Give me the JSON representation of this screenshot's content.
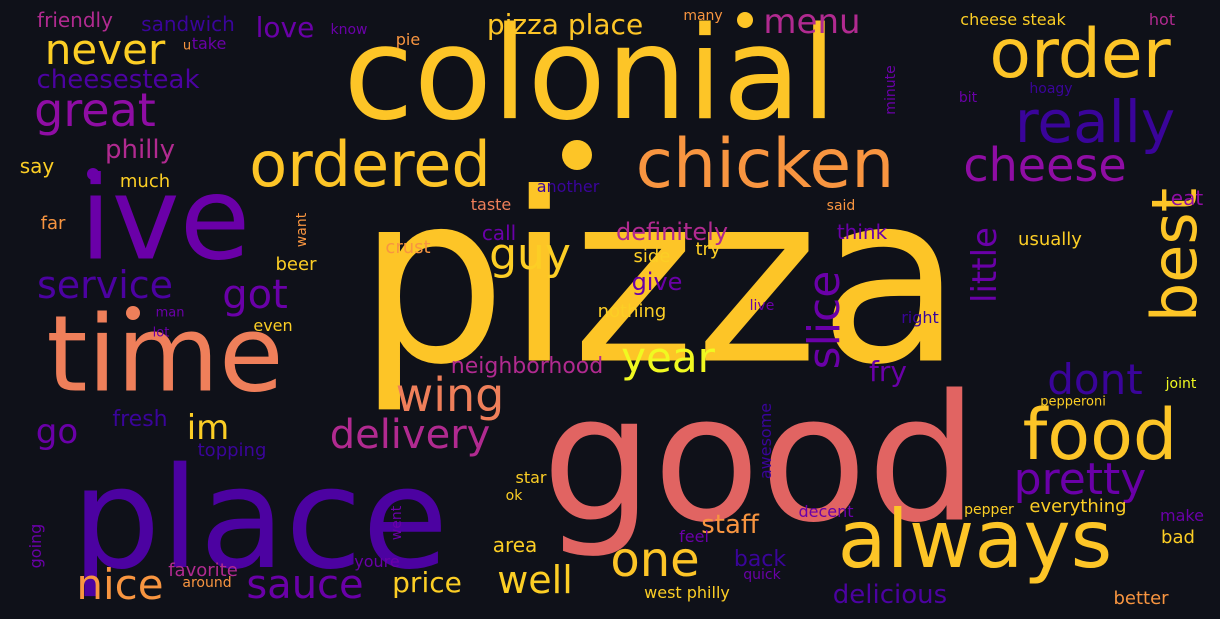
{
  "colors": {
    "background": "#0f1119",
    "yellow": "#fdc527",
    "lightyellow": "#f0f921",
    "gold": "#fcce25",
    "orange": "#f89540",
    "salmon": "#e16462",
    "coral": "#ef7f5a",
    "magenta": "#b12a90",
    "purple": "#8f0da4",
    "violet": "#6a00a8",
    "indigo": "#4c02a1",
    "deepblue": "#3a049a"
  },
  "words": [
    {
      "text": "pizza",
      "color": "yellow"
    },
    {
      "text": "colonial",
      "color": "yellow"
    },
    {
      "text": "good",
      "color": "salmon"
    },
    {
      "text": "place",
      "color": "indigo"
    },
    {
      "text": "ive",
      "color": "violet"
    },
    {
      "text": "time",
      "color": "coral"
    },
    {
      "text": "always",
      "color": "yellow"
    },
    {
      "text": "order",
      "color": "yellow"
    },
    {
      "text": "chicken",
      "color": "orange"
    },
    {
      "text": "ordered",
      "color": "yellow"
    },
    {
      "text": "best",
      "color": "yellow"
    },
    {
      "text": "food",
      "color": "yellow"
    },
    {
      "text": "really",
      "color": "deepblue"
    },
    {
      "text": "cheese",
      "color": "purple"
    },
    {
      "text": "great",
      "color": "purple"
    },
    {
      "text": "never",
      "color": "gold"
    },
    {
      "text": "delivery",
      "color": "magenta"
    },
    {
      "text": "one",
      "color": "yellow"
    },
    {
      "text": "wing",
      "color": "coral"
    },
    {
      "text": "sauce",
      "color": "violet"
    },
    {
      "text": "nice",
      "color": "orange"
    },
    {
      "text": "guy",
      "color": "gold"
    },
    {
      "text": "slice",
      "color": "violet"
    },
    {
      "text": "pretty",
      "color": "violet"
    },
    {
      "text": "got",
      "color": "violet"
    },
    {
      "text": "service",
      "color": "indigo"
    },
    {
      "text": "year",
      "color": "lightyellow"
    },
    {
      "text": "dont",
      "color": "deepblue"
    },
    {
      "text": "well",
      "color": "gold"
    },
    {
      "text": "little",
      "color": "violet"
    },
    {
      "text": "menu",
      "color": "magenta"
    },
    {
      "text": "pizza place",
      "color": "yellow"
    },
    {
      "text": "cheesesteak",
      "color": "indigo"
    },
    {
      "text": "im",
      "color": "gold"
    },
    {
      "text": "go",
      "color": "violet"
    },
    {
      "text": "love",
      "color": "violet"
    },
    {
      "text": "staff",
      "color": "orange"
    },
    {
      "text": "price",
      "color": "gold"
    },
    {
      "text": "delicious",
      "color": "indigo"
    },
    {
      "text": "philly",
      "color": "magenta"
    },
    {
      "text": "definitely",
      "color": "magenta"
    },
    {
      "text": "fry",
      "color": "violet"
    },
    {
      "text": "neighborhood",
      "color": "magenta"
    },
    {
      "text": "friendly",
      "color": "magenta"
    },
    {
      "text": "sandwich",
      "color": "deepblue"
    },
    {
      "text": "fresh",
      "color": "deepblue"
    },
    {
      "text": "give",
      "color": "violet"
    },
    {
      "text": "back",
      "color": "deepblue"
    },
    {
      "text": "area",
      "color": "gold"
    },
    {
      "text": "topping",
      "color": "deepblue"
    },
    {
      "text": "awesome",
      "color": "deepblue"
    },
    {
      "text": "cheese steak",
      "color": "gold"
    },
    {
      "text": "hot",
      "color": "magenta"
    },
    {
      "text": "say",
      "color": "gold"
    },
    {
      "text": "much",
      "color": "gold"
    },
    {
      "text": "call",
      "color": "violet"
    },
    {
      "text": "crust",
      "color": "orange"
    },
    {
      "text": "beer",
      "color": "gold"
    },
    {
      "text": "far",
      "color": "orange"
    },
    {
      "text": "think",
      "color": "violet"
    },
    {
      "text": "side",
      "color": "gold"
    },
    {
      "text": "try",
      "color": "gold"
    },
    {
      "text": "usually",
      "color": "gold"
    },
    {
      "text": "eat",
      "color": "purple"
    },
    {
      "text": "nothing",
      "color": "gold"
    },
    {
      "text": "right",
      "color": "deepblue"
    },
    {
      "text": "live",
      "color": "violet"
    },
    {
      "text": "even",
      "color": "gold"
    },
    {
      "text": "favorite",
      "color": "magenta"
    },
    {
      "text": "around",
      "color": "orange"
    },
    {
      "text": "youre",
      "color": "violet"
    },
    {
      "text": "west philly",
      "color": "gold"
    },
    {
      "text": "quick",
      "color": "violet"
    },
    {
      "text": "better",
      "color": "orange"
    },
    {
      "text": "decent",
      "color": "violet"
    },
    {
      "text": "feel",
      "color": "violet"
    },
    {
      "text": "make",
      "color": "violet"
    },
    {
      "text": "bad",
      "color": "gold"
    },
    {
      "text": "everything",
      "color": "gold"
    },
    {
      "text": "pepper",
      "color": "gold"
    },
    {
      "text": "joint",
      "color": "lightyellow"
    },
    {
      "text": "pepperoni",
      "color": "gold"
    },
    {
      "text": "star",
      "color": "gold"
    },
    {
      "text": "ok",
      "color": "gold"
    },
    {
      "text": "went",
      "color": "violet"
    },
    {
      "text": "going",
      "color": "violet"
    },
    {
      "text": "take",
      "color": "violet"
    },
    {
      "text": "u",
      "color": "orange"
    },
    {
      "text": "know",
      "color": "violet"
    },
    {
      "text": "pie",
      "color": "orange"
    },
    {
      "text": "many",
      "color": "orange"
    },
    {
      "text": "minute",
      "color": "violet"
    },
    {
      "text": "bit",
      "color": "violet"
    },
    {
      "text": "hoagy",
      "color": "deepblue"
    },
    {
      "text": "another",
      "color": "deepblue"
    },
    {
      "text": "taste",
      "color": "coral"
    },
    {
      "text": "said",
      "color": "orange"
    },
    {
      "text": "want",
      "color": "orange"
    },
    {
      "text": "man",
      "color": "violet"
    },
    {
      "text": "lot",
      "color": "violet"
    }
  ],
  "dots": [
    {
      "color": "yellow"
    },
    {
      "color": "yellow"
    },
    {
      "color": "violet"
    },
    {
      "color": "coral"
    }
  ]
}
